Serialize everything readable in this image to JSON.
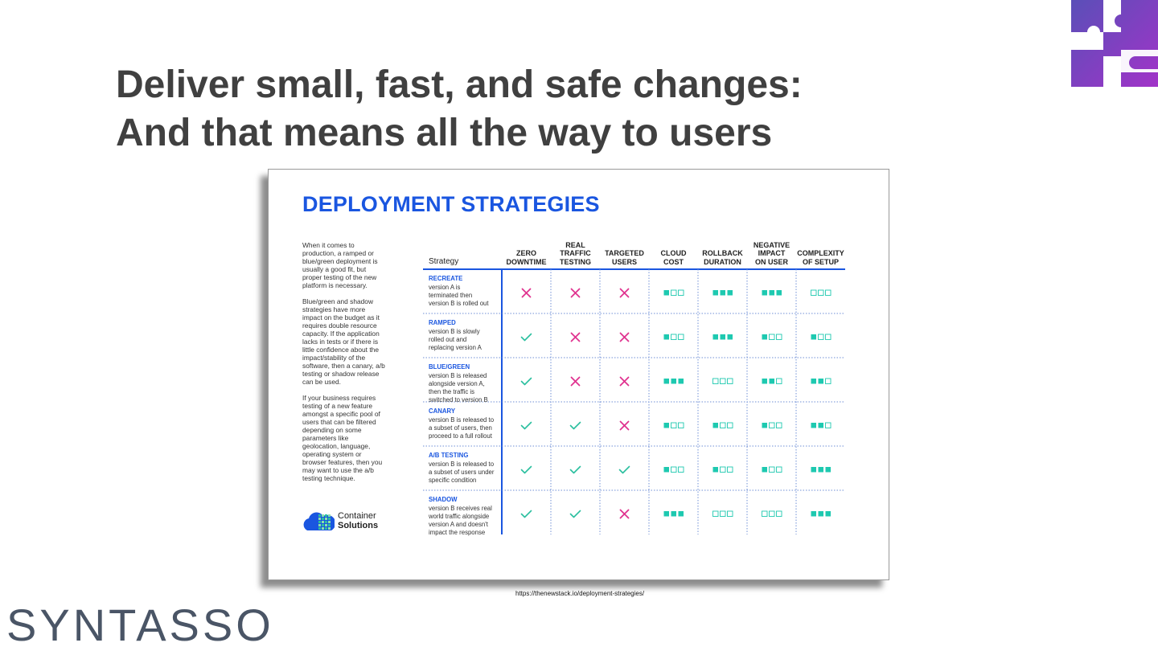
{
  "slide": {
    "title_line1": "Deliver small, fast, and safe changes:",
    "title_line2": "And that means all the way to users",
    "brand": "SYNTASSO",
    "source_url": "https://thenewstack.io/deployment-strategies/"
  },
  "card": {
    "title": "DEPLOYMENT STRATEGIES",
    "side_paragraphs": [
      "When it comes to production, a ramped or blue/green deployment is usually a good fit, but proper testing of the new platform is necessary.",
      "Blue/green and shadow strategies have more impact on the budget as it requires double resource capacity. If the application lacks in tests or if there is little confidence about the impact/stability of the software, then a canary, a/b testing or shadow release can be used.",
      "If your business requires testing of a new feature amongst a specific pool of users that can be filtered depending on some parameters like geolocation, language, operating system or browser features, then you may want to use the a/b testing technique."
    ],
    "logo_line1": "Container",
    "logo_line2": "Solutions"
  },
  "colors": {
    "accent_blue": "#1a56e0",
    "cross": "#e0338f",
    "check": "#2bbf9f",
    "square": "#1ec9b0",
    "title_gray": "#404040",
    "brand_gray": "#4a5566"
  },
  "table": {
    "strategy_header": "Strategy",
    "columns": [
      [
        "ZERO",
        "DOWNTIME"
      ],
      [
        "REAL",
        "TRAFFIC",
        "TESTING"
      ],
      [
        "TARGETED",
        "USERS"
      ],
      [
        "CLOUD",
        "COST"
      ],
      [
        "ROLLBACK",
        "DURATION"
      ],
      [
        "NEGATIVE",
        "IMPACT",
        "ON USER"
      ],
      [
        "COMPLEXITY",
        "OF SETUP"
      ]
    ],
    "rows": [
      {
        "name": "RECREATE",
        "desc": [
          "version A is",
          "terminated then",
          "version B is rolled out"
        ],
        "zero_downtime": "cross",
        "real_traffic": "cross",
        "targeted": "cross",
        "cloud_cost": 1,
        "rollback": 3,
        "impact": 3,
        "complexity": 0
      },
      {
        "name": "RAMPED",
        "desc": [
          "version B is slowly",
          "rolled out and",
          "replacing version A"
        ],
        "zero_downtime": "check",
        "real_traffic": "cross",
        "targeted": "cross",
        "cloud_cost": 1,
        "rollback": 3,
        "impact": 1,
        "complexity": 1
      },
      {
        "name": "BLUE/GREEN",
        "desc": [
          "version B is released",
          "alongside version A,",
          "then the traffic is",
          "switched to version B"
        ],
        "zero_downtime": "check",
        "real_traffic": "cross",
        "targeted": "cross",
        "cloud_cost": 3,
        "rollback": 0,
        "impact": 2,
        "complexity": 2
      },
      {
        "name": "CANARY",
        "desc": [
          "version B is released to",
          "a subset of users, then",
          "proceed to a full rollout"
        ],
        "zero_downtime": "check",
        "real_traffic": "check",
        "targeted": "cross",
        "cloud_cost": 1,
        "rollback": 1,
        "impact": 1,
        "complexity": 2
      },
      {
        "name": "A/B TESTING",
        "desc": [
          "version B is released to",
          "a subset of users under",
          "specific condition"
        ],
        "zero_downtime": "check",
        "real_traffic": "check",
        "targeted": "check",
        "cloud_cost": 1,
        "rollback": 1,
        "impact": 1,
        "complexity": 3
      },
      {
        "name": "SHADOW",
        "desc": [
          "version B receives real",
          "world traffic alongside",
          "version A and doesn't",
          "impact the response"
        ],
        "zero_downtime": "check",
        "real_traffic": "check",
        "targeted": "cross",
        "cloud_cost": 3,
        "rollback": 0,
        "impact": 0,
        "complexity": 3
      }
    ]
  }
}
